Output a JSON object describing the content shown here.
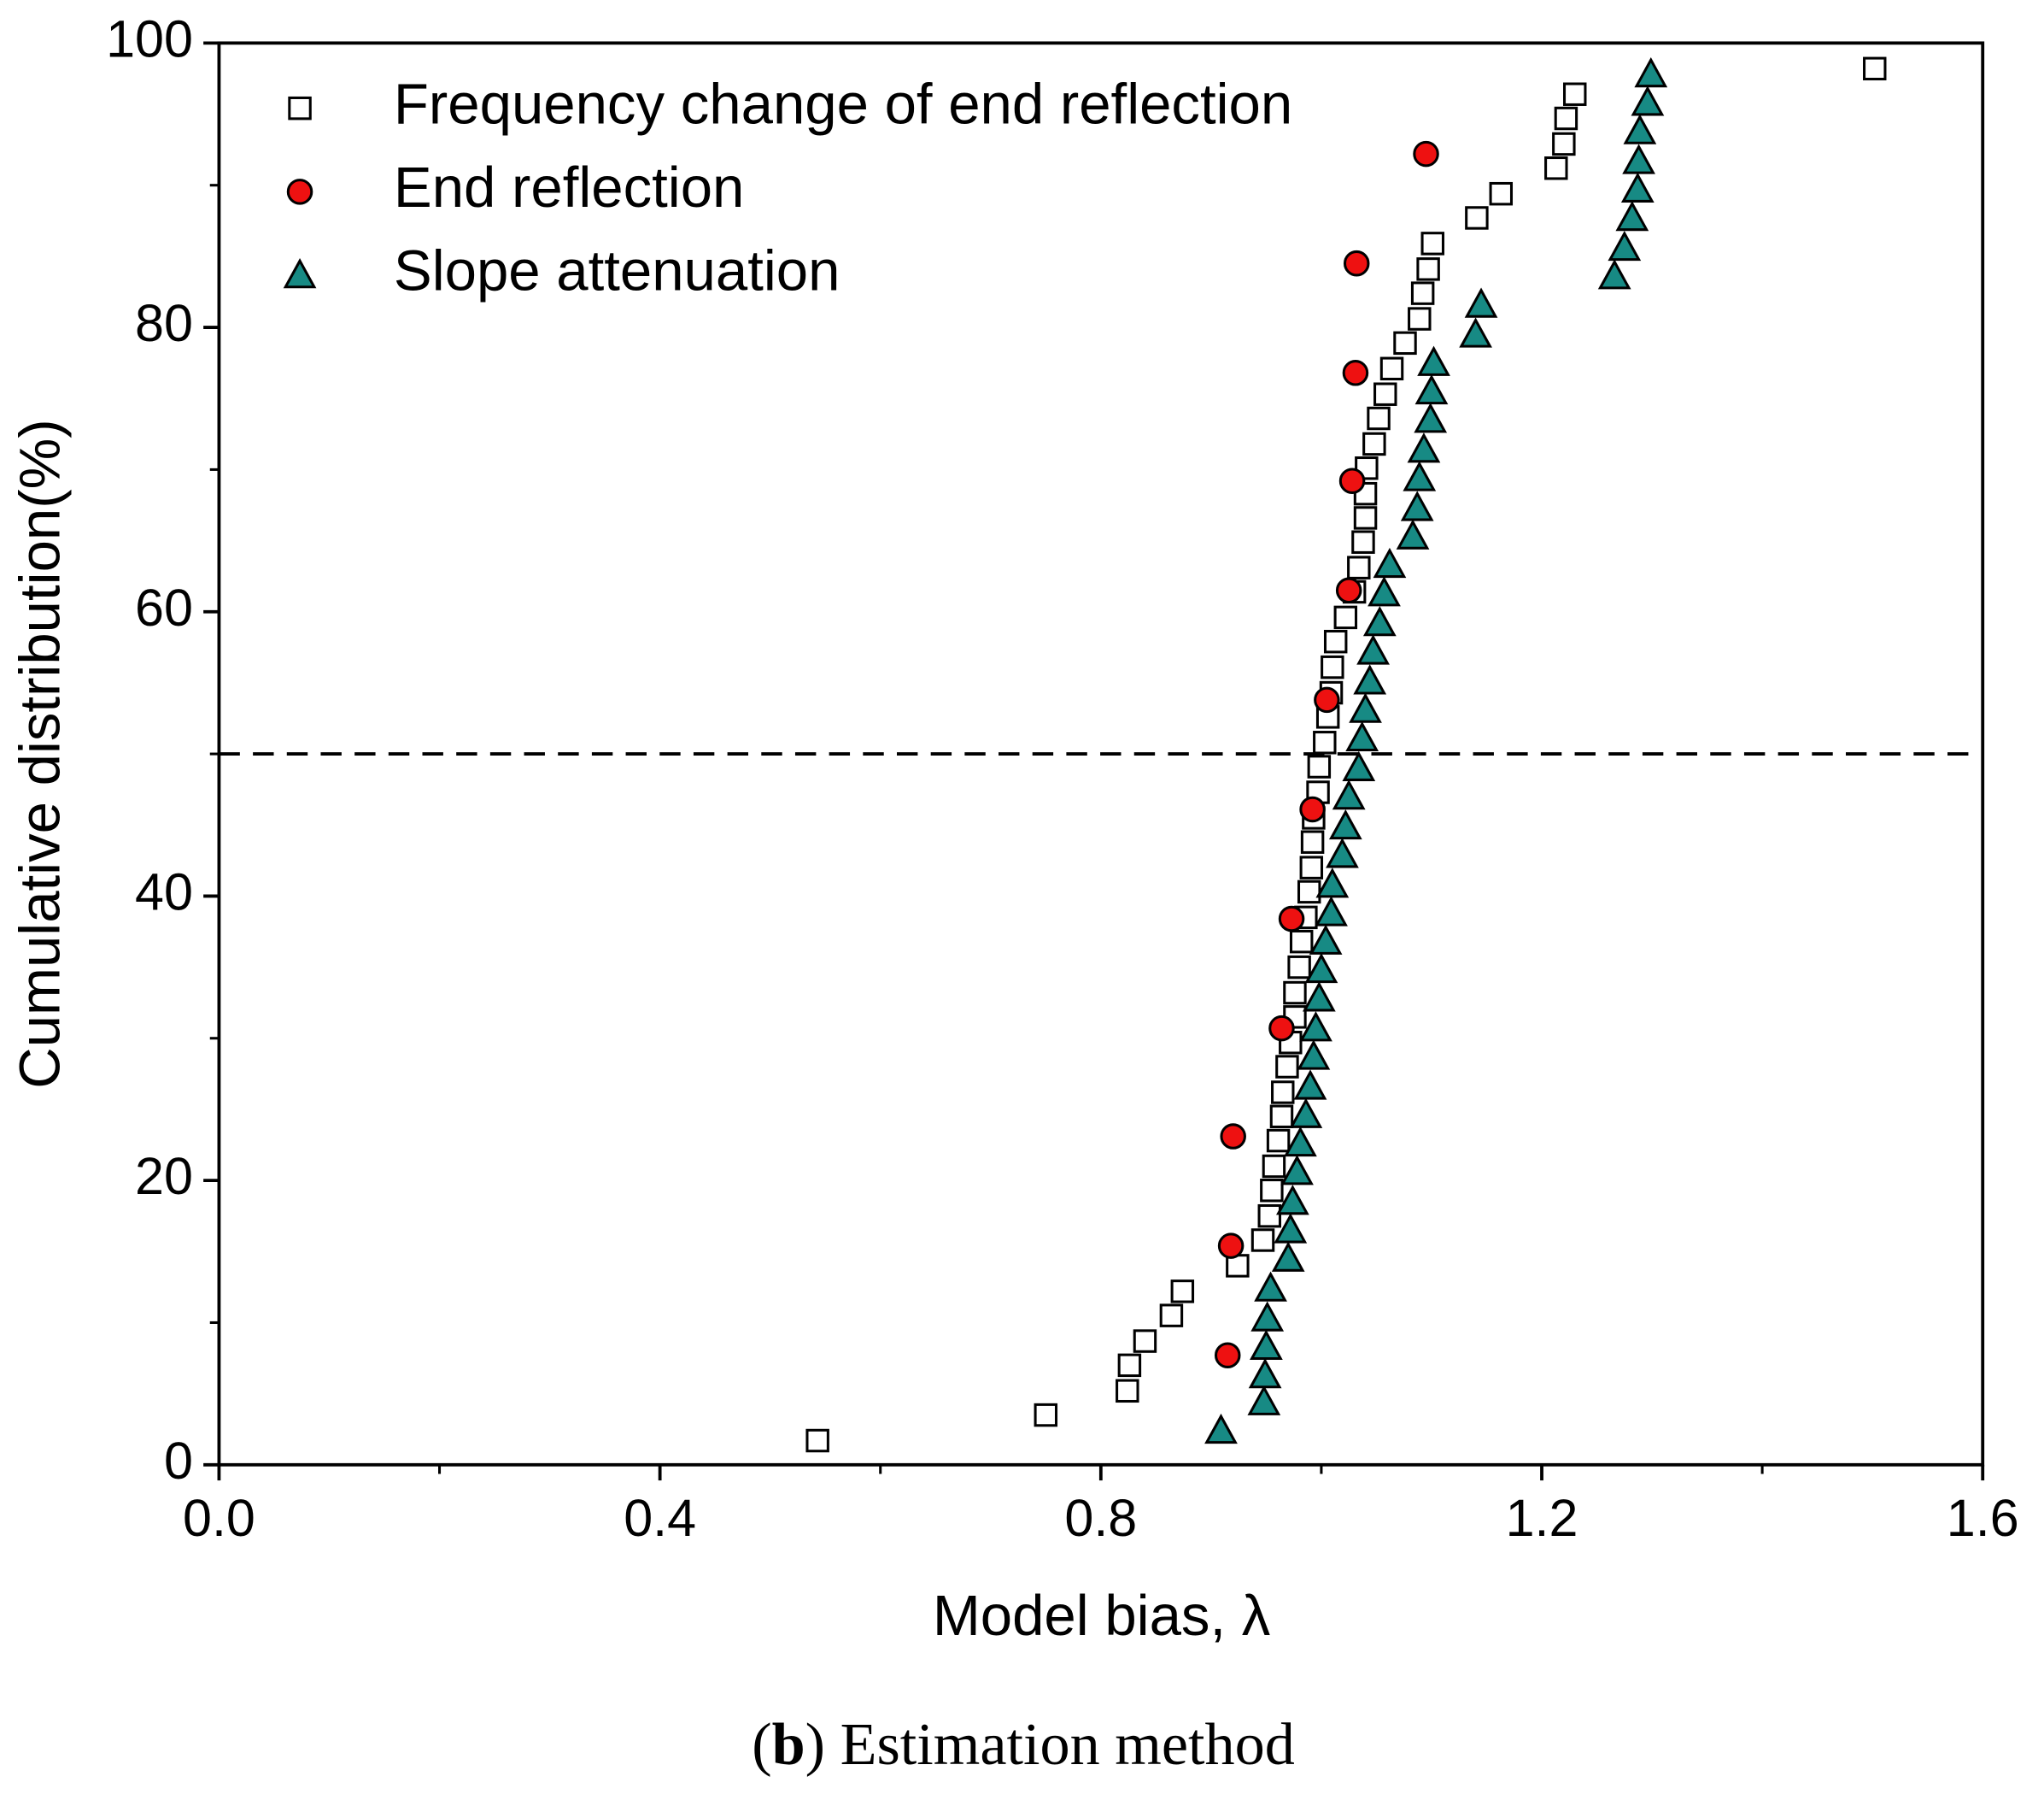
{
  "chart_data": {
    "type": "scatter",
    "xlabel": "Model bias, λ",
    "ylabel": "Cumulative distribution(%)",
    "caption": [
      "(",
      "b",
      ") Estimation method"
    ],
    "xlim": [
      0,
      1.6
    ],
    "ylim": [
      0,
      100
    ],
    "xticks": [
      {
        "value": 0,
        "label": "0.0"
      },
      0.4,
      0.8,
      1.2,
      1.6
    ],
    "yticks": [
      0,
      20,
      40,
      60,
      80,
      100
    ],
    "hline": 50,
    "legend": "upper left",
    "series": [
      {
        "name": "Frequency change of end reflection",
        "marker": "square",
        "color": "#ffffff",
        "x": [
          0.543,
          0.75,
          0.824,
          0.826,
          0.84,
          0.864,
          0.874,
          0.924,
          0.947,
          0.953,
          0.955,
          0.957,
          0.961,
          0.964,
          0.965,
          0.969,
          0.972,
          0.976,
          0.976,
          0.98,
          0.982,
          0.986,
          0.989,
          0.991,
          0.992,
          0.993,
          0.997,
          0.998,
          1.003,
          1.006,
          1.009,
          1.01,
          1.013,
          1.022,
          1.03,
          1.034,
          1.038,
          1.04,
          1.04,
          1.041,
          1.048,
          1.052,
          1.058,
          1.064,
          1.076,
          1.089,
          1.092,
          1.097,
          1.101,
          1.141,
          1.163,
          1.213,
          1.22,
          1.222,
          1.23,
          1.502
        ],
        "values": [
          1.7,
          3.5,
          5.2,
          7.0,
          8.7,
          10.5,
          12.2,
          14.0,
          15.8,
          17.5,
          19.3,
          21.0,
          22.8,
          24.5,
          26.2,
          28.0,
          29.7,
          31.5,
          33.2,
          35.0,
          36.8,
          38.5,
          40.3,
          42.0,
          43.8,
          45.5,
          47.3,
          49.1,
          50.8,
          52.6,
          54.3,
          56.1,
          57.9,
          59.6,
          61.4,
          63.1,
          64.9,
          66.6,
          68.3,
          70.1,
          71.8,
          73.6,
          75.3,
          77.1,
          78.9,
          80.6,
          82.4,
          84.1,
          85.9,
          87.7,
          89.4,
          91.2,
          92.9,
          94.7,
          96.4,
          98.2
        ]
      },
      {
        "name": "End reflection",
        "marker": "circle",
        "color": "#ee1111",
        "x": [
          0.915,
          0.918,
          0.92,
          0.964,
          0.973,
          0.992,
          1.005,
          1.025,
          1.028,
          1.031,
          1.032,
          1.095
        ],
        "values": [
          7.7,
          15.4,
          23.1,
          30.7,
          38.4,
          46.1,
          53.8,
          61.5,
          69.2,
          76.8,
          84.5,
          92.2
        ]
      },
      {
        "name": "Slope attenuation",
        "marker": "triangle",
        "color": "#178a84",
        "x": [
          0.909,
          0.948,
          0.949,
          0.95,
          0.951,
          0.954,
          0.97,
          0.972,
          0.974,
          0.978,
          0.981,
          0.986,
          0.99,
          0.993,
          0.995,
          0.998,
          1.0,
          1.004,
          1.009,
          1.01,
          1.019,
          1.022,
          1.025,
          1.034,
          1.037,
          1.04,
          1.044,
          1.047,
          1.053,
          1.057,
          1.062,
          1.083,
          1.087,
          1.089,
          1.093,
          1.099,
          1.1,
          1.102,
          1.14,
          1.145,
          1.266,
          1.275,
          1.282,
          1.287,
          1.288,
          1.289,
          1.296,
          1.299
        ],
        "values": [
          2.4,
          4.4,
          6.3,
          8.3,
          10.3,
          12.4,
          14.5,
          16.5,
          18.5,
          20.6,
          22.6,
          24.6,
          26.6,
          28.7,
          30.7,
          32.8,
          34.8,
          36.8,
          38.8,
          40.8,
          42.9,
          44.9,
          47.0,
          49.0,
          51.1,
          53.1,
          55.1,
          57.2,
          59.2,
          61.3,
          63.3,
          65.3,
          67.3,
          69.4,
          71.4,
          73.5,
          75.5,
          77.5,
          79.5,
          81.6,
          83.6,
          85.6,
          87.7,
          89.7,
          91.7,
          93.8,
          95.8,
          97.8
        ]
      }
    ]
  }
}
